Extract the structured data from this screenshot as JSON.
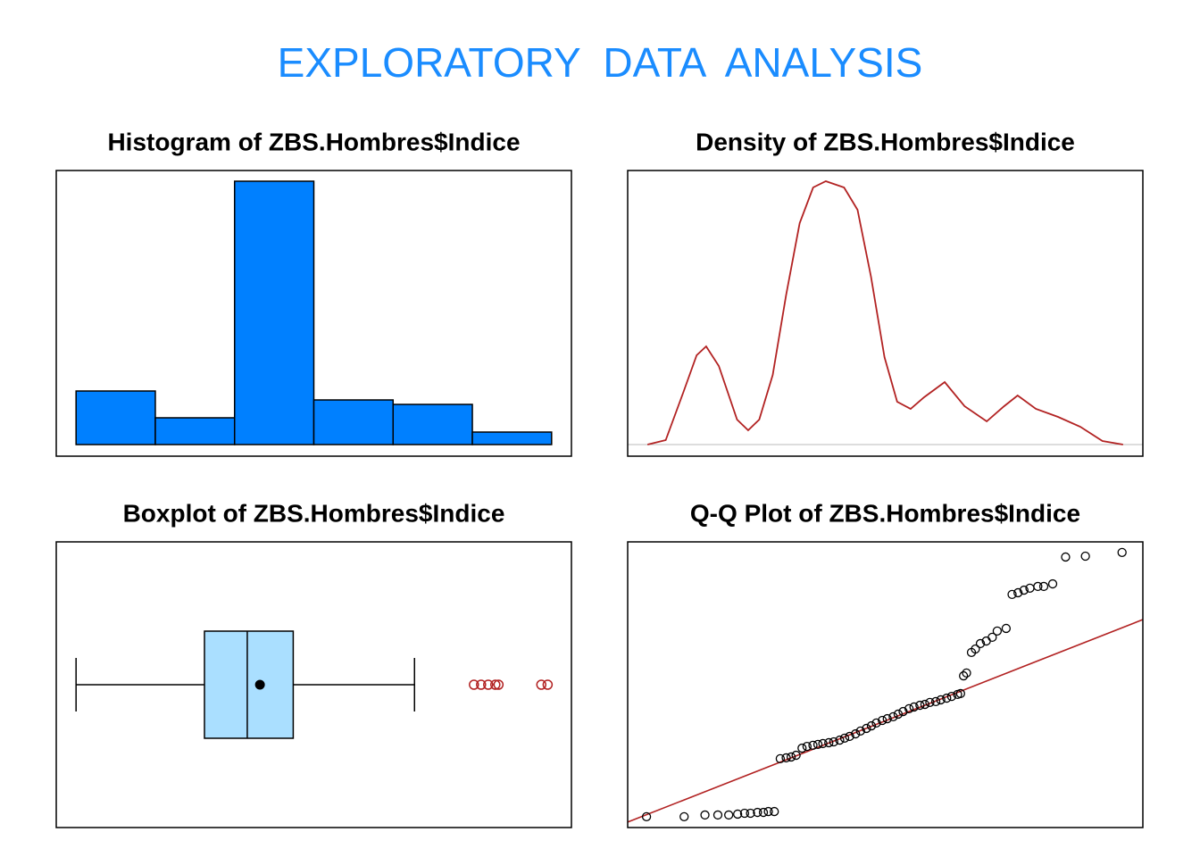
{
  "title": "EXPLORATORY  DATA  ANALYSIS",
  "chart_data": [
    {
      "type": "histogram",
      "title": "Histogram of ZBS.Hombres$Indice",
      "bins": [
        0,
        1,
        2,
        3,
        4,
        5,
        6
      ],
      "values": [
        12,
        6,
        59,
        10,
        9,
        2.8
      ],
      "color": "#0080ff",
      "xlim": [
        -0.25,
        6.25
      ],
      "ylim": [
        -2.6,
        61.4
      ]
    },
    {
      "type": "line",
      "title": "Density of ZBS.Hombres$Indice",
      "x": [
        0,
        0.23,
        0.45,
        0.62,
        0.74,
        0.9,
        1.13,
        1.27,
        1.41,
        1.58,
        1.75,
        1.92,
        2.09,
        2.25,
        2.48,
        2.65,
        2.82,
        2.99,
        3.15,
        3.32,
        3.49,
        3.75,
        4.0,
        4.28,
        4.5,
        4.67,
        4.9,
        5.18,
        5.46,
        5.74,
        6
      ],
      "values": [
        0,
        1,
        11.6,
        20,
        22,
        17.6,
        5.6,
        3.2,
        5.6,
        15.6,
        33.6,
        49.6,
        57.6,
        59,
        57.6,
        52.6,
        37.6,
        19.6,
        9.6,
        8,
        10.6,
        14,
        8.6,
        5.2,
        8.6,
        11,
        8,
        6.2,
        4,
        0.8,
        0
      ],
      "color": "#b22222",
      "xlim": [
        -0.25,
        6.25
      ],
      "ylim": [
        -2.6,
        61.4
      ]
    },
    {
      "type": "boxplot",
      "title": "Boxplot of ZBS.Hombres$Indice",
      "min": 0,
      "q1": 1.62,
      "median": 2.16,
      "mean": 2.32,
      "q3": 2.74,
      "max": 4.27,
      "outliers": [
        5.02,
        5.11,
        5.2,
        5.29,
        5.33,
        5.87,
        5.95
      ],
      "color": "#aadfff",
      "outlier_color": "#b22222",
      "xlim": [
        -0.25,
        6.25
      ]
    },
    {
      "type": "scatter",
      "title": "Q-Q Plot of ZBS.Hombres$Indice",
      "x": [
        -2.41,
        -2.03,
        -1.82,
        -1.69,
        -1.58,
        -1.49,
        -1.42,
        -1.36,
        -1.29,
        -1.23,
        -1.18,
        -1.12,
        -1.06,
        -1.0,
        -0.95,
        -0.9,
        -0.84,
        -0.79,
        -0.73,
        -0.68,
        -0.63,
        -0.57,
        -0.52,
        -0.46,
        -0.41,
        -0.36,
        -0.3,
        -0.25,
        -0.19,
        -0.14,
        -0.09,
        -0.03,
        0.02,
        0.08,
        0.13,
        0.18,
        0.24,
        0.29,
        0.35,
        0.4,
        0.45,
        0.51,
        0.56,
        0.62,
        0.67,
        0.73,
        0.76,
        0.79,
        0.82,
        0.87,
        0.91,
        0.96,
        1.02,
        1.08,
        1.13,
        1.22,
        1.28,
        1.34,
        1.4,
        1.46,
        1.54,
        1.6,
        1.69,
        1.82,
        2.02,
        2.39
      ],
      "values": [
        0.38,
        0.38,
        0.44,
        0.44,
        0.44,
        0.47,
        0.5,
        0.5,
        0.53,
        0.53,
        0.56,
        0.56,
        2.41,
        2.44,
        2.47,
        2.53,
        2.78,
        2.84,
        2.88,
        2.91,
        2.94,
        2.97,
        3.0,
        3.06,
        3.13,
        3.19,
        3.28,
        3.38,
        3.47,
        3.56,
        3.66,
        3.75,
        3.81,
        3.88,
        3.97,
        4.06,
        4.16,
        4.22,
        4.28,
        4.31,
        4.38,
        4.41,
        4.47,
        4.53,
        4.59,
        4.66,
        4.69,
        5.31,
        5.41,
        6.13,
        6.25,
        6.44,
        6.53,
        6.66,
        6.88,
        6.97,
        8.16,
        8.22,
        8.31,
        8.38,
        8.44,
        8.44,
        8.53,
        9.47,
        9.5,
        9.63
      ],
      "color": "#000000",
      "line_color": "#b22222",
      "reference_line": {
        "x": [
          -2.6,
          2.6
        ],
        "y": [
          0.19,
          7.28
        ]
      },
      "xlim": [
        -2.6,
        2.6
      ],
      "ylim": [
        0,
        10
      ]
    }
  ]
}
